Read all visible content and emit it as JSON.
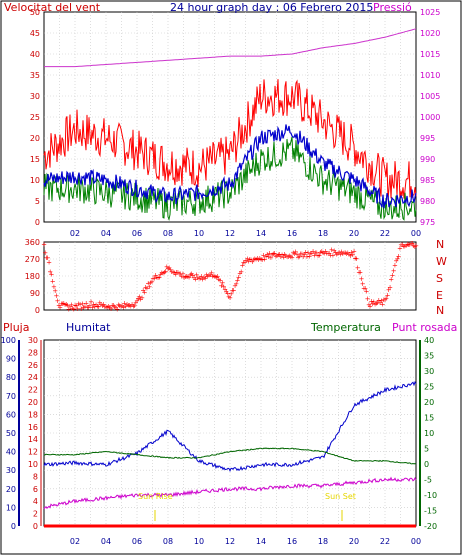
{
  "colors": {
    "wind_avg": "#0000cc",
    "wind_gust": "#ff0000",
    "wind_min": "#008000",
    "pressure": "#cc33cc",
    "humidity": "#0000cc",
    "temperature": "#006600",
    "dewpoint": "#cc00cc",
    "rain": "#ff0000",
    "grid": "#c8c8c8",
    "frame": "#000000",
    "blue_text": "#000099",
    "red_text": "#cc0000",
    "green_text": "#006600",
    "purple_text": "#cc00cc",
    "yellow_marker": "#e6d600"
  },
  "top_chart": {
    "title": "24 hour graph day : 06 Febrero 2015",
    "left_label": "Velocitat del vent",
    "right_label": "Pressió",
    "left_ticks": [
      "0",
      "5",
      "10",
      "15",
      "20",
      "25",
      "30",
      "35",
      "40",
      "45",
      "50"
    ],
    "right_ticks": [
      "975",
      "980",
      "985",
      "990",
      "995",
      "1000",
      "1005",
      "1010",
      "1015",
      "1020",
      "1025"
    ],
    "x_ticks": [
      "02",
      "04",
      "06",
      "08",
      "10",
      "12",
      "14",
      "16",
      "18",
      "20",
      "22",
      "00"
    ]
  },
  "direction_chart": {
    "left_ticks": [
      "0",
      "90",
      "180",
      "270",
      "360"
    ],
    "compass": [
      "N",
      "W",
      "S",
      "E",
      "N"
    ],
    "x_ticks": [
      "02",
      "04",
      "06",
      "08",
      "10",
      "12",
      "14",
      "16",
      "18",
      "20",
      "22",
      "00"
    ]
  },
  "bottom_chart": {
    "labels": {
      "rain": "Pluja",
      "humidity": "Humitat",
      "temperature": "Temperatura",
      "dewpoint": "Punt rosada",
      "sunrise": "Sun Rise",
      "sunset": "Sun Set"
    },
    "humidity_ticks": [
      "0",
      "10",
      "20",
      "30",
      "40",
      "50",
      "60",
      "70",
      "80",
      "90",
      "100"
    ],
    "rain_ticks": [
      "0",
      "2",
      "4",
      "6",
      "8",
      "10",
      "12",
      "14",
      "16",
      "18",
      "20",
      "22",
      "24",
      "26",
      "28",
      "30"
    ],
    "temp_ticks": [
      "-20",
      "-15",
      "-10",
      "-5",
      "0",
      "5",
      "10",
      "15",
      "20",
      "25",
      "30",
      "35",
      "40"
    ],
    "x_ticks": [
      "02",
      "04",
      "06",
      "08",
      "10",
      "12",
      "14",
      "16",
      "18",
      "20",
      "22",
      "00"
    ]
  },
  "chart_data": [
    {
      "type": "line",
      "title": "24 hour graph day : 06 Febrero 2015",
      "xlabel": "",
      "ylabel": "Velocitat del vent",
      "y2label": "Pressió",
      "x": [
        0,
        2,
        4,
        6,
        8,
        10,
        12,
        14,
        16,
        18,
        20,
        22,
        24
      ],
      "ylim": [
        0,
        50
      ],
      "y2lim": [
        975,
        1025
      ],
      "series": [
        {
          "name": "Velocitat del vent",
          "role": "gust",
          "values": [
            16,
            22,
            20,
            17,
            14,
            13,
            16,
            30,
            30,
            24,
            18,
            10,
            10
          ]
        },
        {
          "name": "",
          "role": "average",
          "values": [
            10,
            11,
            10,
            8,
            6,
            7,
            9,
            20,
            22,
            14,
            10,
            5,
            6
          ]
        },
        {
          "name": "",
          "role": "minimum",
          "values": [
            8,
            8,
            7,
            6,
            4,
            5,
            7,
            15,
            17,
            10,
            7,
            3,
            4
          ]
        },
        {
          "name": "Pressió",
          "axis": "right",
          "values": [
            1012,
            1012,
            1012.5,
            1013,
            1013.5,
            1014,
            1014.5,
            1014.5,
            1015,
            1016.5,
            1017.5,
            1019,
            1021
          ]
        }
      ],
      "grid": true
    },
    {
      "type": "scatter",
      "title": "",
      "ylabel": "",
      "ylim": [
        0,
        360
      ],
      "x": [
        0,
        1,
        2,
        3,
        4,
        5,
        6,
        7,
        8,
        9,
        10,
        11,
        12,
        13,
        14,
        15,
        16,
        17,
        18,
        19,
        20,
        21,
        22,
        23,
        24
      ],
      "series": [
        {
          "name": "",
          "values": [
            340,
            20,
            15,
            30,
            20,
            15,
            40,
            160,
            220,
            180,
            170,
            190,
            70,
            260,
            275,
            290,
            290,
            295,
            300,
            305,
            300,
            30,
            40,
            330,
            350
          ]
        }
      ],
      "grid": true
    },
    {
      "type": "line",
      "title": "",
      "x": [
        0,
        2,
        4,
        6,
        8,
        10,
        12,
        14,
        16,
        18,
        20,
        22,
        24
      ],
      "series": [
        {
          "name": "Humitat",
          "axis": "humidity",
          "ylim": [
            0,
            100
          ],
          "values": [
            33,
            34,
            33,
            39,
            51,
            35,
            30,
            33,
            33,
            37,
            65,
            73,
            77
          ]
        },
        {
          "name": "Temperatura",
          "axis": "temperature",
          "ylim": [
            -20,
            40
          ],
          "values": [
            3,
            3,
            4,
            3,
            2,
            2,
            4,
            5,
            5,
            4,
            1,
            1,
            0
          ]
        },
        {
          "name": "Punt rosada",
          "axis": "temperature",
          "ylim": [
            -20,
            40
          ],
          "values": [
            -14,
            -12,
            -11,
            -10,
            -10,
            -9,
            -8,
            -8,
            -7,
            -7,
            -6,
            -5,
            -5
          ]
        },
        {
          "name": "Pluja",
          "axis": "rain",
          "ylim": [
            0,
            30
          ],
          "values": [
            0,
            0,
            0,
            0,
            0,
            0,
            0,
            0,
            0,
            0,
            0,
            0,
            0
          ]
        }
      ],
      "annotations": [
        "Sun Rise",
        "Sun Set"
      ],
      "grid": true
    }
  ]
}
